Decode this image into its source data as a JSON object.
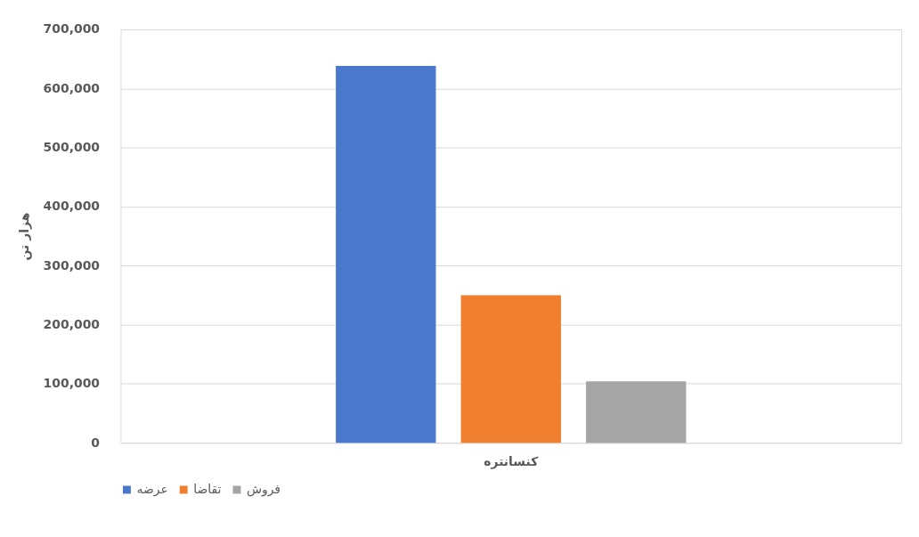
{
  "chart_data": {
    "type": "bar",
    "categories": [
      "کنسانتره"
    ],
    "ylabel": "هزار تن",
    "series": [
      {
        "name": "عرضه",
        "color": "#4a78cc",
        "values": [
          638000
        ]
      },
      {
        "name": "تقاضا",
        "color": "#f07f30",
        "values": [
          250000
        ]
      },
      {
        "name": "فروش",
        "color": "#a5a5a5",
        "values": [
          104000
        ]
      }
    ],
    "ylim": [
      0,
      700000
    ],
    "yticks": [
      0,
      {
        "value": 100000,
        "label": "100,000"
      },
      {
        "value": 200000,
        "label": "200,000"
      },
      {
        "value": 300000,
        "label": "300,000"
      },
      {
        "value": 400000,
        "label": "400,000"
      },
      {
        "value": 500000,
        "label": "500,000"
      },
      {
        "value": 600000,
        "label": "600,000"
      },
      {
        "value": 700000,
        "label": "700,000"
      }
    ],
    "grid": "y",
    "legend": "bottom"
  }
}
